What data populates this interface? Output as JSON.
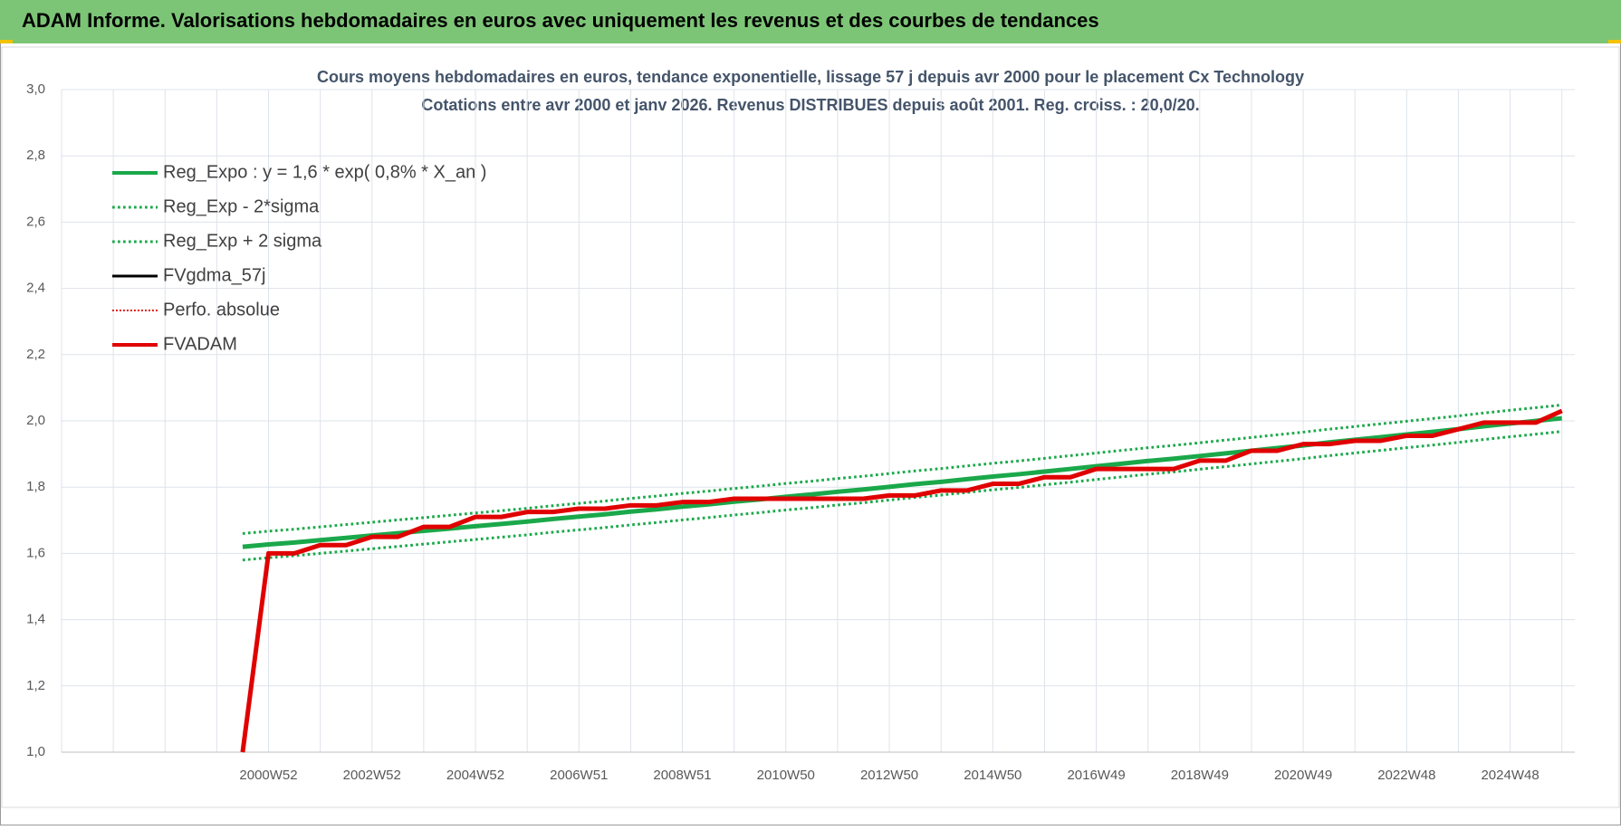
{
  "header": {
    "title": "ADAM Informe. Valorisations hebdomadaires en euros avec uniquement les revenus et des courbes de tendances"
  },
  "chart_data": {
    "type": "line",
    "title": "Cours moyens hebdomadaires en euros, tendance exponentielle, lissage 57 j depuis avr 2000 pour le placement Cx Technology",
    "subtitle": "Cotations entre avr 2000 et janv 2026.  Revenus DISTRIBUES depuis août 2001. Reg. croiss. : 20,0/20.",
    "categories": [
      null,
      null,
      null,
      null,
      null,
      null,
      null,
      null,
      "2000W52",
      null,
      null,
      null,
      "2002W52",
      null,
      null,
      null,
      "2004W52",
      null,
      null,
      null,
      "2006W51",
      null,
      null,
      null,
      "2008W51",
      null,
      null,
      null,
      "2010W50",
      null,
      null,
      null,
      "2012W50",
      null,
      null,
      null,
      "2014W50",
      null,
      null,
      null,
      "2016W49",
      null,
      null,
      null,
      "2018W49",
      null,
      null,
      null,
      "2020W49",
      null,
      null,
      null,
      "2022W48",
      null,
      null,
      null,
      "2024W48",
      null,
      null
    ],
    "ylim": [
      1.0,
      3.0
    ],
    "yticks": [
      {
        "value": 1.0,
        "label": "1,0"
      },
      {
        "value": 1.2,
        "label": "1,2"
      },
      {
        "value": 1.4,
        "label": "1,4"
      },
      {
        "value": 1.6,
        "label": "1,6"
      },
      {
        "value": 1.8,
        "label": "1,8"
      },
      {
        "value": 2.0,
        "label": "2,0"
      },
      {
        "value": 2.2,
        "label": "2,2"
      },
      {
        "value": 2.4,
        "label": "2,4"
      },
      {
        "value": 2.6,
        "label": "2,6"
      },
      {
        "value": 2.8,
        "label": "2,8"
      },
      {
        "value": 3.0,
        "label": "3,0"
      }
    ],
    "grid": true,
    "legend": "upper-left",
    "series": [
      {
        "name": "Reg_Expo : y = 1,6 * exp( 0,8% *  X_an )",
        "color": "#1aa84a",
        "style": "solid",
        "width": 5,
        "values": [
          null,
          null,
          null,
          null,
          null,
          null,
          null,
          1.62,
          1.627,
          1.633,
          1.64,
          1.647,
          1.654,
          1.661,
          1.668,
          1.675,
          1.682,
          1.689,
          1.696,
          1.704,
          1.711,
          1.718,
          1.726,
          1.733,
          1.741,
          1.748,
          1.756,
          1.763,
          1.771,
          1.778,
          1.786,
          1.793,
          1.801,
          1.809,
          1.816,
          1.824,
          1.832,
          1.839,
          1.847,
          1.855,
          1.863,
          1.871,
          1.879,
          1.886,
          1.894,
          1.902,
          1.91,
          1.918,
          1.926,
          1.935,
          1.943,
          1.951,
          1.959,
          1.967,
          1.975,
          1.984,
          1.992,
          2.0,
          2.008
        ]
      },
      {
        "name": "Reg_Exp - 2*sigma",
        "color": "#1aa84a",
        "style": "dotted",
        "width": 3,
        "values": [
          null,
          null,
          null,
          null,
          null,
          null,
          null,
          1.58,
          1.587,
          1.593,
          1.6,
          1.607,
          1.614,
          1.621,
          1.628,
          1.635,
          1.642,
          1.649,
          1.656,
          1.664,
          1.671,
          1.678,
          1.686,
          1.693,
          1.701,
          1.708,
          1.716,
          1.723,
          1.731,
          1.738,
          1.746,
          1.753,
          1.761,
          1.769,
          1.776,
          1.784,
          1.792,
          1.799,
          1.807,
          1.815,
          1.823,
          1.831,
          1.839,
          1.846,
          1.854,
          1.862,
          1.87,
          1.878,
          1.886,
          1.895,
          1.903,
          1.911,
          1.919,
          1.927,
          1.935,
          1.944,
          1.952,
          1.96,
          1.968
        ]
      },
      {
        "name": "Reg_Exp + 2 sigma",
        "color": "#1aa84a",
        "style": "dotted",
        "width": 3,
        "values": [
          null,
          null,
          null,
          null,
          null,
          null,
          null,
          1.66,
          1.667,
          1.673,
          1.68,
          1.687,
          1.694,
          1.701,
          1.708,
          1.715,
          1.722,
          1.729,
          1.736,
          1.744,
          1.751,
          1.758,
          1.766,
          1.773,
          1.781,
          1.788,
          1.796,
          1.803,
          1.811,
          1.818,
          1.826,
          1.833,
          1.841,
          1.849,
          1.856,
          1.864,
          1.872,
          1.879,
          1.887,
          1.895,
          1.903,
          1.911,
          1.919,
          1.926,
          1.934,
          1.942,
          1.95,
          1.958,
          1.966,
          1.975,
          1.983,
          1.991,
          1.999,
          2.007,
          2.015,
          2.024,
          2.032,
          2.04,
          2.048
        ]
      },
      {
        "name": "FVgdma_57j",
        "color": "#000000",
        "style": "solid",
        "width": 3,
        "values": [
          null,
          null,
          null,
          null,
          null,
          null,
          null,
          1.0,
          1.6,
          1.6,
          1.625,
          1.625,
          1.65,
          1.65,
          1.68,
          1.68,
          1.71,
          1.71,
          1.725,
          1.725,
          1.735,
          1.735,
          1.745,
          1.745,
          1.755,
          1.755,
          1.765,
          1.765,
          1.765,
          1.765,
          1.765,
          1.765,
          1.775,
          1.775,
          1.79,
          1.79,
          1.81,
          1.81,
          1.83,
          1.83,
          1.855,
          1.855,
          1.855,
          1.855,
          1.88,
          1.88,
          1.91,
          1.91,
          1.93,
          1.93,
          1.94,
          1.94,
          1.955,
          1.955,
          1.975,
          1.995,
          1.995,
          1.995,
          2.03
        ]
      },
      {
        "name": "Perfo. absolue",
        "color": "#e00000",
        "style": "dotted",
        "width": 2,
        "values": [
          null,
          null,
          null,
          null,
          null,
          null,
          null,
          1.0,
          1.6,
          1.6,
          1.625,
          1.625,
          1.65,
          1.65,
          1.68,
          1.68,
          1.71,
          1.71,
          1.725,
          1.725,
          1.735,
          1.735,
          1.745,
          1.745,
          1.755,
          1.755,
          1.765,
          1.765,
          1.765,
          1.765,
          1.765,
          1.765,
          1.775,
          1.775,
          1.79,
          1.79,
          1.81,
          1.81,
          1.83,
          1.83,
          1.855,
          1.855,
          1.855,
          1.855,
          1.88,
          1.88,
          1.91,
          1.91,
          1.93,
          1.93,
          1.94,
          1.94,
          1.955,
          1.955,
          1.975,
          1.995,
          1.995,
          1.995,
          2.03
        ]
      },
      {
        "name": "FVADAM",
        "color": "#e00000",
        "style": "solid",
        "width": 5,
        "values": [
          null,
          null,
          null,
          null,
          null,
          null,
          null,
          1.0,
          1.6,
          1.6,
          1.625,
          1.625,
          1.65,
          1.65,
          1.68,
          1.68,
          1.71,
          1.71,
          1.725,
          1.725,
          1.735,
          1.735,
          1.745,
          1.745,
          1.755,
          1.755,
          1.765,
          1.765,
          1.765,
          1.765,
          1.765,
          1.765,
          1.775,
          1.775,
          1.79,
          1.79,
          1.81,
          1.81,
          1.83,
          1.83,
          1.855,
          1.855,
          1.855,
          1.855,
          1.88,
          1.88,
          1.91,
          1.91,
          1.93,
          1.93,
          1.94,
          1.94,
          1.955,
          1.955,
          1.975,
          1.995,
          1.995,
          1.995,
          2.03
        ]
      }
    ]
  }
}
